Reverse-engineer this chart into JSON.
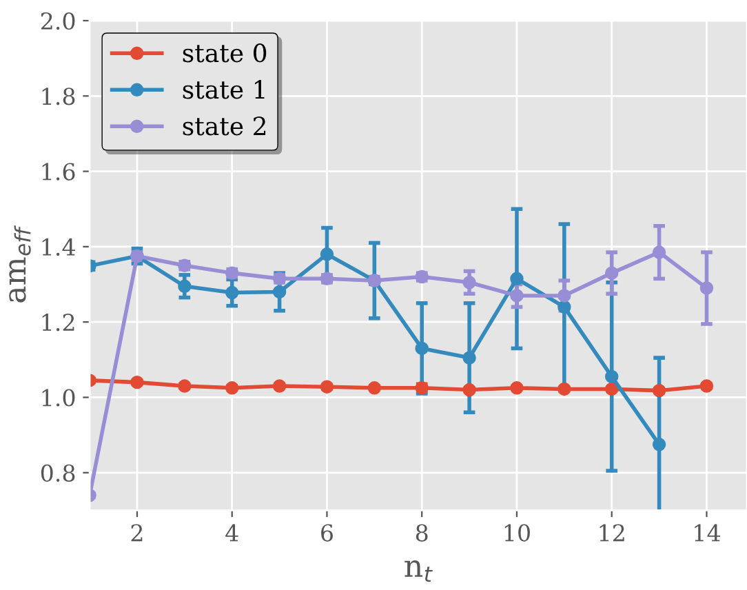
{
  "chart_data": {
    "type": "line",
    "xlabel": "n$_{t}$",
    "ylabel": "am$_{eff}$",
    "x": [
      1,
      2,
      3,
      4,
      5,
      6,
      7,
      8,
      9,
      10,
      11,
      12,
      13,
      14
    ],
    "series": [
      {
        "name": "state 0",
        "color": "#e24a33",
        "values": [
          1.045,
          1.04,
          1.03,
          1.025,
          1.03,
          1.028,
          1.025,
          1.025,
          1.02,
          1.025,
          1.022,
          1.022,
          1.018,
          1.03
        ],
        "errors": [
          0.005,
          0.005,
          0.005,
          0.005,
          0.005,
          0.005,
          0.005,
          0.01,
          0.005,
          0.005,
          0.005,
          0.005,
          0.005,
          0.005
        ]
      },
      {
        "name": "state 1",
        "color": "#348abd",
        "values": [
          1.349,
          1.375,
          1.295,
          1.278,
          1.28,
          1.38,
          1.31,
          1.13,
          1.105,
          1.315,
          1.24,
          1.055,
          0.875,
          null
        ],
        "errors": [
          0.01,
          0.02,
          0.03,
          0.035,
          0.05,
          0.07,
          0.1,
          0.12,
          0.145,
          0.185,
          0.22,
          0.25,
          0.23,
          null
        ]
      },
      {
        "name": "state 2",
        "color": "#988ed5",
        "values": [
          0.74,
          1.375,
          1.35,
          1.33,
          1.315,
          1.315,
          1.31,
          1.32,
          1.305,
          1.27,
          1.27,
          1.33,
          1.385,
          1.29
        ],
        "errors": [
          0.005,
          0.01,
          0.01,
          0.01,
          0.01,
          0.01,
          0.01,
          0.01,
          0.03,
          0.03,
          0.04,
          0.055,
          0.07,
          0.095
        ]
      }
    ],
    "xlim": [
      1,
      14.85
    ],
    "ylim": [
      0.7,
      2.0
    ],
    "xticks": [
      2,
      4,
      6,
      8,
      10,
      12,
      14
    ],
    "yticks": [
      0.8,
      {
        "value": 1.0,
        "label": "1.0"
      },
      1.2,
      1.4,
      1.6,
      1.8,
      {
        "value": 2.0,
        "label": "2.0"
      }
    ],
    "grid": true,
    "legend": "top left",
    "marker": "circle",
    "line_style": "solid"
  }
}
